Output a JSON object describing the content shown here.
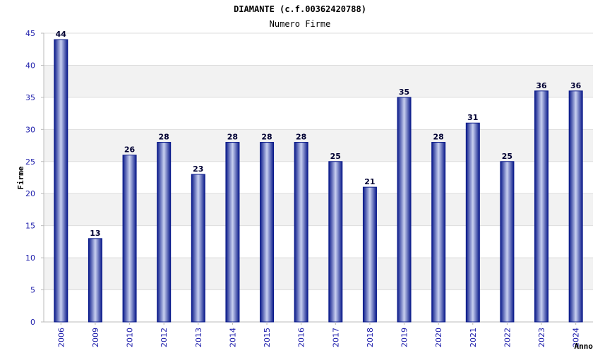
{
  "chart_data": {
    "type": "bar",
    "title": "DIAMANTE (c.f.00362420788)",
    "subtitle": "Numero Firme",
    "xlabel": "Anno",
    "ylabel": "Firme",
    "categories": [
      "2006",
      "2009",
      "2010",
      "2012",
      "2013",
      "2014",
      "2015",
      "2016",
      "2017",
      "2018",
      "2019",
      "2020",
      "2021",
      "2022",
      "2023",
      "2024"
    ],
    "values": [
      44,
      13,
      26,
      28,
      23,
      28,
      28,
      28,
      25,
      21,
      35,
      28,
      31,
      25,
      36,
      36
    ],
    "ylim": [
      0,
      45
    ],
    "yticks": [
      0,
      5,
      10,
      15,
      20,
      25,
      30,
      35,
      40,
      45
    ],
    "grid": true,
    "colors": {
      "bar_edge": "#0a1a8a",
      "bar_center": "#c8d0f0",
      "band": "#f2f2f2",
      "tick_text": "#1a1aaa"
    }
  }
}
